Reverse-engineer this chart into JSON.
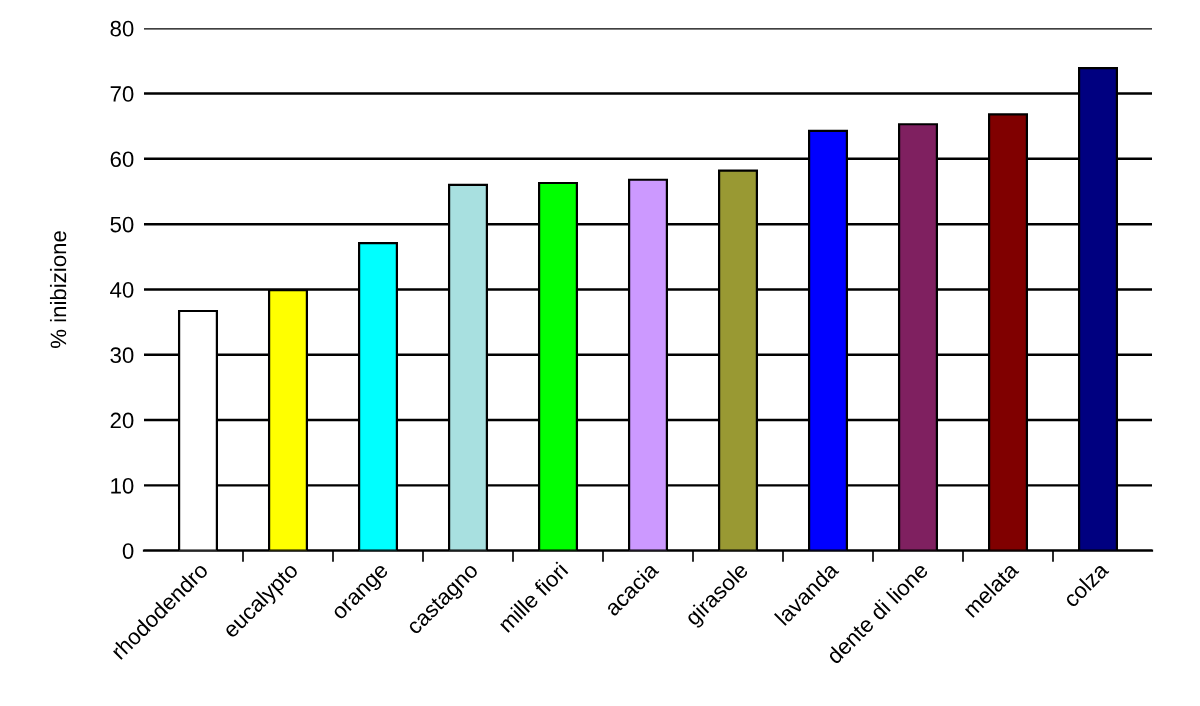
{
  "chart_data": {
    "type": "bar",
    "ylabel": "% inibizione",
    "categories": [
      "rhododendro",
      "eucalypto",
      "orange",
      "castagno",
      "mille fiori",
      "acacia",
      "girasole",
      "lavanda",
      "dente di lione",
      "melata",
      "colza"
    ],
    "values": [
      36.7,
      39.9,
      47.1,
      56.0,
      56.3,
      56.8,
      58.2,
      64.3,
      65.3,
      66.8,
      73.9
    ],
    "colors": [
      "#ffffff",
      "#ffff00",
      "#00ffff",
      "#a8e0e0",
      "#00ff00",
      "#cc99ff",
      "#999933",
      "#0000ff",
      "#7f2060",
      "#800000",
      "#000080"
    ],
    "ylim": [
      0,
      80
    ],
    "yticks": [
      0,
      10,
      20,
      30,
      40,
      50,
      60,
      70,
      80
    ],
    "grid": "y"
  }
}
